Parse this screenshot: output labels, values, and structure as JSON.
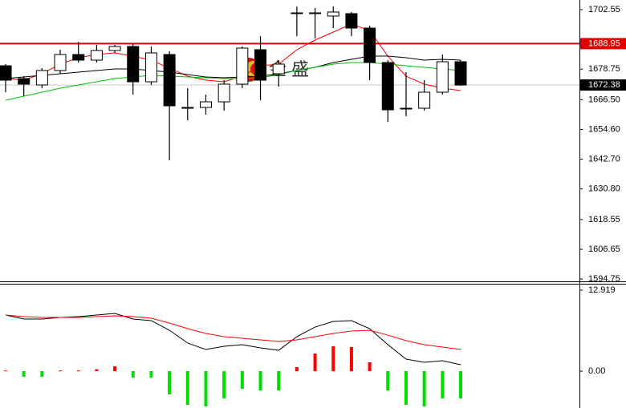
{
  "chart_data": [
    {
      "type": "candlestick",
      "categories": [
        null,
        null,
        null,
        null,
        null,
        null,
        null,
        null,
        null,
        null,
        null,
        null,
        null,
        null,
        null,
        null,
        null,
        null,
        null,
        null,
        null,
        null,
        null,
        null,
        null,
        null
      ],
      "open": [
        1680.09,
        1674.96,
        1672.4,
        1678.17,
        1684.59,
        1682.34,
        1686.19,
        1687.79,
        1673.68,
        1684.59,
        1663.41,
        1663.41,
        1665.66,
        1672.72,
        1686.51,
        1676.89,
        1701.27,
        1701.27,
        1699.98,
        1700.95,
        1695.17,
        1681.38,
        1663.09,
        1663.09,
        1669.51,
        1681.7
      ],
      "high": [
        1680.74,
        1675.92,
        1679.13,
        1686.51,
        1689.72,
        1688.44,
        1688.44,
        1688.76,
        1687.79,
        1685.87,
        1671.11,
        1668.55,
        1674.32,
        1687.79,
        1691.96,
        1682.34,
        1703.83,
        1703.19,
        1703.83,
        1701.59,
        1696.13,
        1682.34,
        1677.53,
        1674.32,
        1684.59,
        1682.34
      ],
      "low": [
        1669.51,
        1667.9,
        1671.11,
        1676.89,
        1681.38,
        1681.38,
        1685.23,
        1668.55,
        1672.4,
        1642.24,
        1658.28,
        1660.53,
        1662.13,
        1671.11,
        1666.3,
        1671.75,
        1691.96,
        1691.0,
        1695.17,
        1691.96,
        1674.32,
        1657.64,
        1659.88,
        1662.13,
        1668.55,
        1672.08
      ],
      "close": [
        1674.32,
        1672.72,
        1678.17,
        1684.59,
        1682.34,
        1686.19,
        1687.79,
        1673.68,
        1685.23,
        1664.05,
        1663.09,
        1665.66,
        1672.72,
        1687.15,
        1674.32,
        1680.74,
        1701.27,
        1701.27,
        1701.59,
        1695.17,
        1681.38,
        1662.45,
        1663.09,
        1669.51,
        1681.7,
        1672.38
      ],
      "up_color": "#ffffff",
      "down_color": "#000000",
      "series": [
        {
          "color": "#ff0000",
          "values": [
            1674.96,
            1674.32,
            1676.89,
            1680.74,
            1683.3,
            1684.59,
            1685.23,
            1683.94,
            1682.34,
            1679.13,
            1675.92,
            1674.32,
            1673.68,
            1675.92,
            1680.09,
            1680.74,
            1686.51,
            1690.36,
            1693.57,
            1696.78,
            1694.21,
            1683.94,
            1675.92,
            1672.72,
            1671.11,
            1670.15
          ]
        },
        {
          "color": "#000000",
          "values": [
            1674.96,
            1675.6,
            1676.24,
            1676.89,
            1677.53,
            1678.17,
            1678.81,
            1678.81,
            1678.17,
            1677.53,
            1676.57,
            1675.6,
            1675.28,
            1675.6,
            1675.92,
            1676.89,
            1678.17,
            1679.45,
            1681.38,
            1682.66,
            1683.94,
            1683.94,
            1683.3,
            1682.34,
            1682.66,
            1682.34
          ]
        },
        {
          "color": "#00c000",
          "values": [
            1666.3,
            1667.9,
            1669.51,
            1671.11,
            1672.4,
            1673.68,
            1674.96,
            1675.6,
            1676.24,
            1675.92,
            1675.6,
            1675.28,
            1674.96,
            1674.96,
            1675.28,
            1676.57,
            1678.17,
            1679.45,
            1680.74,
            1681.38,
            1681.38,
            1680.74,
            1680.09,
            1679.45,
            1678.81,
            1678.17
          ]
        }
      ],
      "ylim": [
        1593.5,
        1706.4
      ],
      "yticks": [
        1702.55,
        1678.75,
        {
          "value": 1666.5,
          "label": "1666.50"
        },
        {
          "value": 1654.6,
          "label": "1654.60"
        },
        {
          "value": 1642.7,
          "label": "1642.70"
        },
        {
          "value": 1630.8,
          "label": "1630.80"
        },
        1618.55,
        1606.65,
        1594.75
      ],
      "price_lines": [
        {
          "value": 1688.95,
          "color": "#e00000"
        },
        {
          "value": 1672.38,
          "color": "#c8c8c8"
        }
      ],
      "watermark": "金 盛"
    },
    {
      "type": "macd",
      "categories": [
        null,
        null,
        null,
        null,
        null,
        null,
        null,
        null,
        null,
        null,
        null,
        null,
        null,
        null,
        null,
        null,
        null,
        null,
        null,
        null,
        null,
        null,
        null,
        null,
        null,
        null
      ],
      "values": [
        0.1,
        -0.9,
        -0.9,
        0.1,
        0.1,
        0.3,
        0.77,
        -1.02,
        -1.02,
        -3.71,
        -5.37,
        -5.63,
        -4.35,
        -2.81,
        -3.07,
        -3.07,
        0.64,
        2.81,
        3.96,
        3.84,
        1.41,
        -3.07,
        -5.37,
        -5.63,
        -4.35,
        -4.35
      ],
      "pos_color": "#ff0000",
      "neg_color": "#00dd00",
      "series": [
        {
          "color": "#000000",
          "values": [
            8.95,
            8.31,
            8.31,
            8.57,
            8.7,
            8.95,
            9.21,
            8.31,
            8.06,
            6.52,
            4.48,
            3.45,
            3.96,
            4.22,
            3.71,
            3.32,
            5.5,
            7.03,
            7.93,
            8.06,
            6.78,
            4.22,
            1.92,
            1.41,
            1.66,
            1.02
          ]
        },
        {
          "color": "#ff0000",
          "values": [
            8.95,
            8.7,
            8.57,
            8.57,
            8.57,
            8.7,
            8.82,
            8.7,
            8.44,
            7.67,
            6.78,
            6.01,
            5.5,
            5.24,
            4.99,
            4.73,
            4.99,
            5.5,
            6.01,
            6.39,
            6.52,
            5.75,
            4.86,
            4.22,
            3.84,
            3.45
          ]
        }
      ],
      "ylim": [
        -5.88,
        13.94
      ],
      "yticks": [
        12.919,
        {
          "value": 0,
          "label": "0.00"
        }
      ]
    }
  ]
}
